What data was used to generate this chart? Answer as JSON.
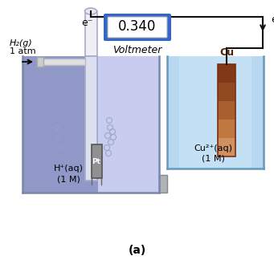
{
  "title": "(a)",
  "voltmeter_value": "0.340",
  "voltmeter_label": "Voltmeter",
  "left_solution_line1": "H⁺(aq)",
  "left_solution_line2": "(1 M)",
  "right_solution_line1": "Cu²⁺(aq)",
  "right_solution_line2": "(1 M)",
  "left_electrode": "Pt",
  "right_electrode": "Cu",
  "h2_line1": "H₂(g)",
  "h2_line2": "1 atm",
  "e_minus": "e⁻",
  "bg_color": "#ffffff",
  "left_beaker_fill": "#b8bedd",
  "left_beaker_dark": "#9098c8",
  "left_beaker_light": "#c8ccee",
  "right_beaker_fill": "#b8d8f0",
  "right_beaker_light": "#d0e8f8",
  "beaker_edge": "#7788aa",
  "right_beaker_edge": "#6699bb",
  "copper_colors": [
    "#d09060",
    "#c07840",
    "#a86030",
    "#904820",
    "#803818"
  ],
  "wire_color": "#111111",
  "salt_bridge_fill": "#b0b4b8",
  "salt_bridge_edge": "#888888",
  "tube_fill": "#e0e4f0",
  "tube_edge": "#aaaacc",
  "pt_fill": "#909090",
  "pt_edge": "#555555",
  "vm_blue": "#3366cc",
  "vm_face": "#ffffff",
  "vm_inner_edge": "#aaaaaa",
  "bubble_edge": "#9aaacc"
}
